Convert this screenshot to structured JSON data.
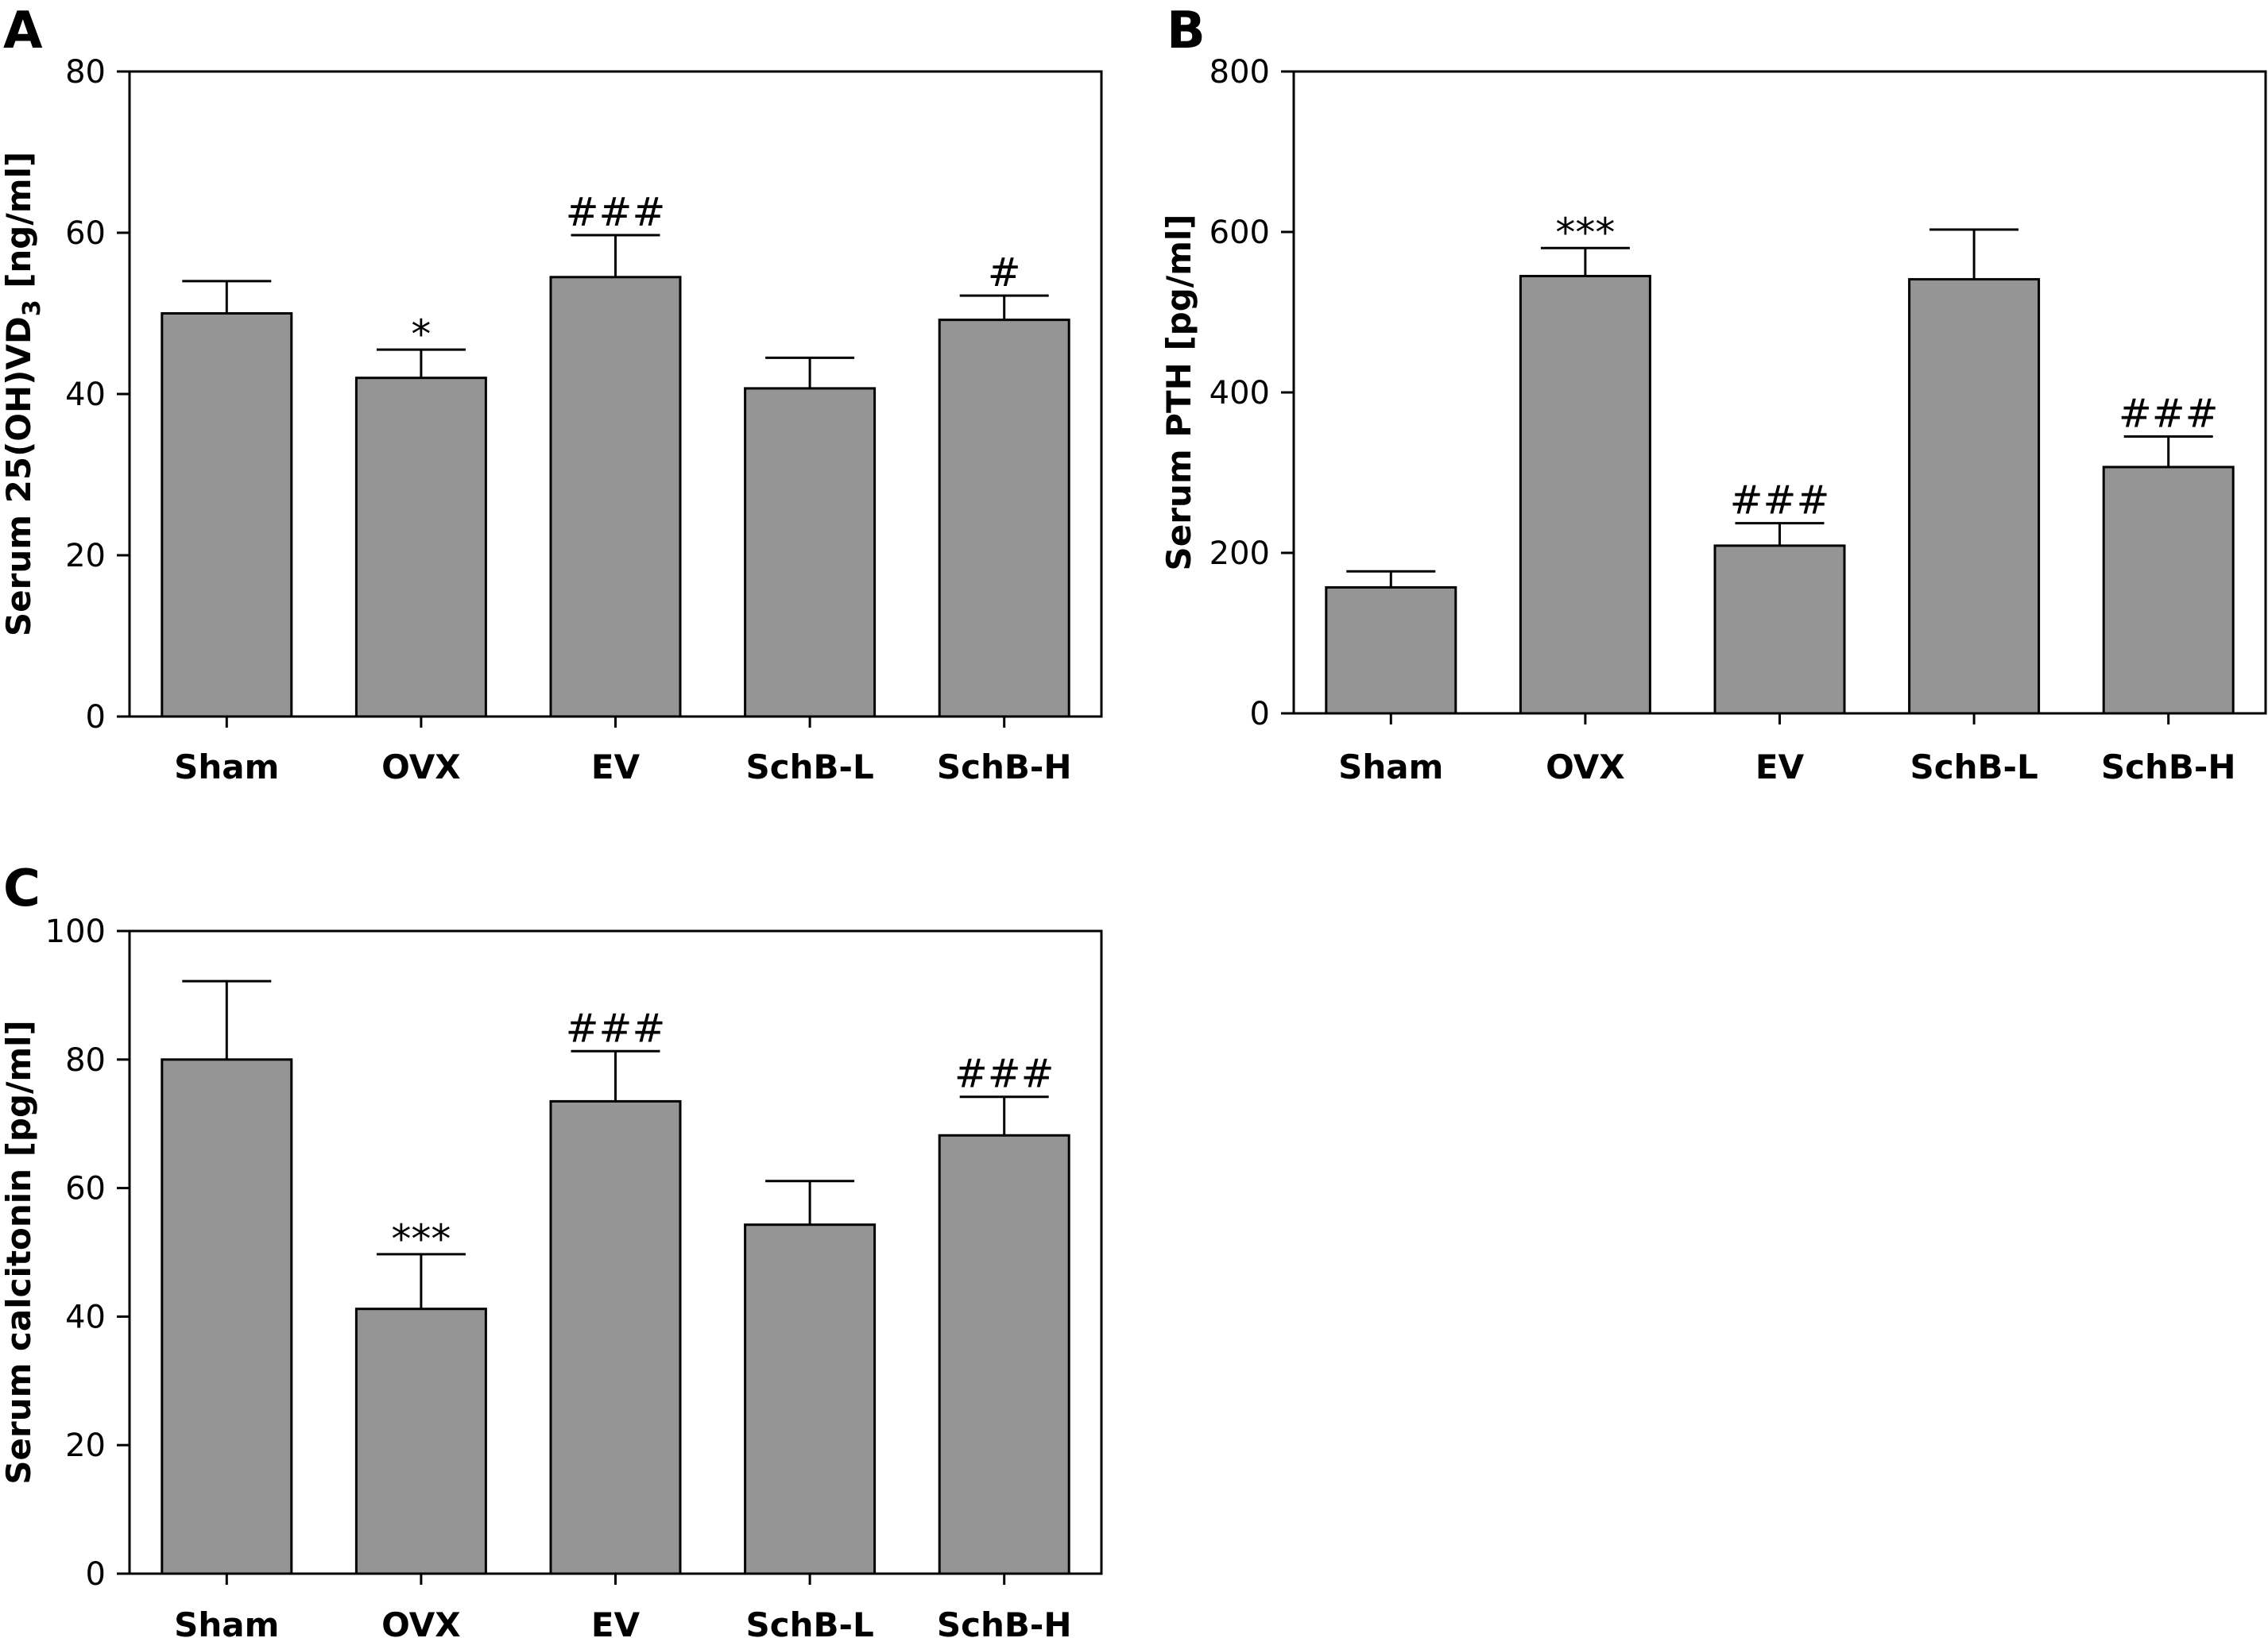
{
  "figure": {
    "bar_color": "#959595",
    "line_color": "#000000",
    "background": "#ffffff"
  },
  "chart_data": [
    {
      "type": "bar",
      "panel": "A",
      "categories": [
        "Sham",
        "OVX",
        "EV",
        "SchB-L",
        "SchB-H"
      ],
      "values": [
        50,
        42,
        54.5,
        40.7,
        49.2
      ],
      "errors": [
        4,
        3.5,
        5.2,
        3.8,
        3.0
      ],
      "annotations": [
        "",
        "*",
        "###",
        "",
        "#"
      ],
      "ylabel_main": "Serum 25(OH)VD",
      "ylabel_sub": "3",
      "ylabel_tail": " [ng/ml]",
      "ylim": [
        0,
        80
      ],
      "yticks": [
        0,
        20,
        40,
        60,
        80
      ],
      "title": ""
    },
    {
      "type": "bar",
      "panel": "B",
      "categories": [
        "Sham",
        "OVX",
        "EV",
        "SchB-L",
        "SchB-H"
      ],
      "values": [
        157,
        545,
        209,
        541,
        307
      ],
      "errors": [
        20,
        35,
        28,
        62,
        38
      ],
      "annotations": [
        "",
        "***",
        "###",
        "",
        "###"
      ],
      "ylabel_main": "Serum PTH [pg/ml]",
      "ylabel_sub": "",
      "ylabel_tail": "",
      "ylim": [
        0,
        800
      ],
      "yticks": [
        0,
        200,
        400,
        600,
        800
      ],
      "title": ""
    },
    {
      "type": "bar",
      "panel": "C",
      "categories": [
        "Sham",
        "OVX",
        "EV",
        "SchB-L",
        "SchB-H"
      ],
      "values": [
        80,
        41.2,
        73.5,
        54.3,
        68.2
      ],
      "errors": [
        12.2,
        8.5,
        7.8,
        6.8,
        6.0
      ],
      "annotations": [
        "",
        "***",
        "###",
        "",
        "###"
      ],
      "ylabel_main": "Serum calcitonin [pg/ml]",
      "ylabel_sub": "",
      "ylabel_tail": "",
      "ylim": [
        0,
        100
      ],
      "yticks": [
        0,
        20,
        40,
        60,
        80,
        100
      ],
      "title": ""
    }
  ]
}
